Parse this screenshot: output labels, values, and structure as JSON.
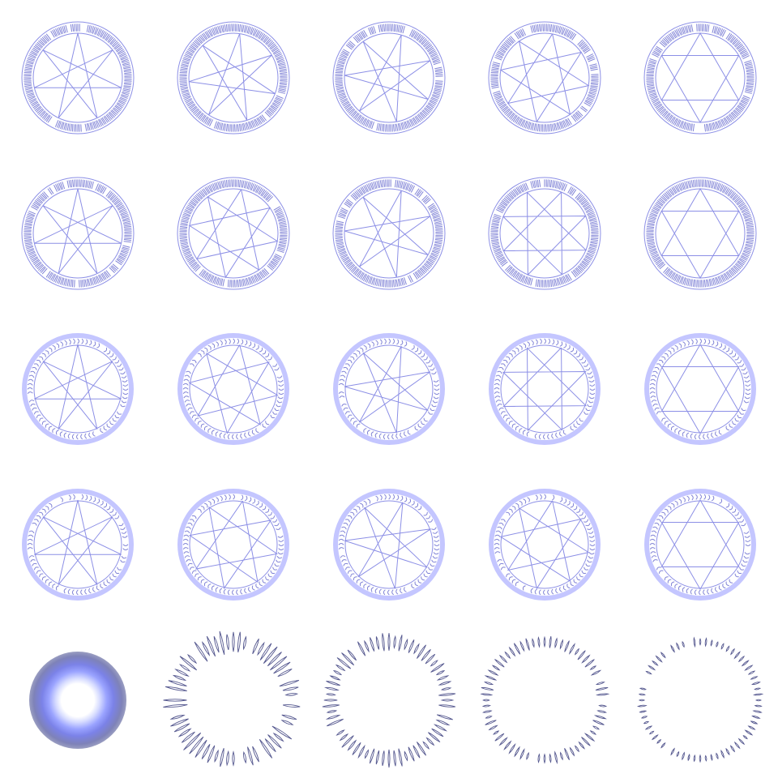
{
  "sheet": {
    "rows": [
      {
        "style": "runes-blocky",
        "ring": "thin",
        "stars": [
          "heptagram",
          "heptagram",
          "heptagram",
          "octagram",
          "hexagram"
        ],
        "rotations_deg": [
          0,
          8,
          16,
          10,
          0
        ]
      },
      {
        "style": "runes-blocky",
        "ring": "thin",
        "stars": [
          "heptagram",
          "octagram",
          "heptagram",
          "octagram",
          "hexagram"
        ],
        "rotations_deg": [
          0,
          10,
          16,
          22,
          0
        ]
      },
      {
        "style": "runes-cursive",
        "ring": "thick",
        "stars": [
          "heptagram",
          "octagram",
          "heptagram",
          "octagram",
          "hexagram"
        ],
        "rotations_deg": [
          0,
          8,
          16,
          22,
          0
        ]
      },
      {
        "style": "runes-cursive",
        "ring": "thick",
        "stars": [
          "heptagram",
          "octagram",
          "heptagram",
          "octagram",
          "hexagram"
        ],
        "rotations_deg": [
          0,
          12,
          18,
          10,
          0
        ]
      }
    ],
    "bottom_row": [
      {
        "kind": "radial-glow"
      },
      {
        "kind": "flame-ring",
        "intensity": 1.0
      },
      {
        "kind": "flame-ring",
        "intensity": 0.7
      },
      {
        "kind": "flame-ring",
        "intensity": 0.45
      },
      {
        "kind": "flame-ring",
        "intensity": 0.28
      }
    ],
    "colors": {
      "line": "#8c8fe6",
      "ring_light": "#c4c6ff",
      "rune": "#8083d6",
      "flame": "#55588f",
      "background": "#ffffff"
    }
  }
}
